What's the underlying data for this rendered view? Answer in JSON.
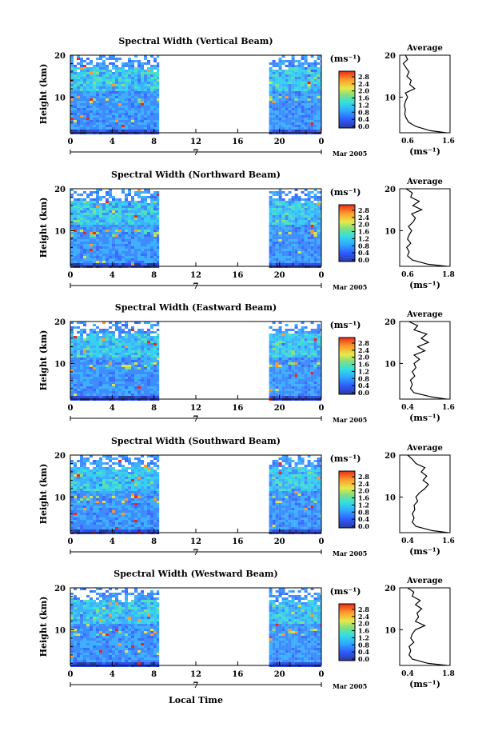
{
  "figure": {
    "xlabel": "Local Time",
    "colorbar_unit": "(ms⁻¹)",
    "avg_title": "Average",
    "avg_xlabel": "(ms⁻¹)",
    "date_suffix": "Mar 2005",
    "day_label": "7"
  },
  "chart_data": [
    {
      "type": "heatmap",
      "title": "Spectral Width (Vertical Beam)",
      "ylabel": "Height (km)",
      "xlabel": "Local Time",
      "x_ticks": [
        "0",
        "4",
        "8",
        "12",
        "16",
        "20",
        "0"
      ],
      "y_ticks": [
        "20",
        "10"
      ],
      "xlim": [
        0,
        24
      ],
      "ylim": [
        1.5,
        20
      ],
      "data_segments_hours": [
        [
          0,
          8.5
        ],
        [
          19,
          24
        ]
      ],
      "colorbar": {
        "ticks": [
          "2.8",
          "2.4",
          "2.0",
          "1.6",
          "1.2",
          "0.8",
          "0.4",
          "0.0"
        ],
        "range": [
          0,
          3.0
        ]
      },
      "average_profile": {
        "xlim": [
          0.2,
          1.6
        ],
        "x_ticks": [
          "0.6",
          "1.6"
        ],
        "height_km": [
          1.5,
          2,
          3,
          4,
          5,
          6,
          7,
          8,
          9,
          10,
          11,
          12,
          13,
          14,
          15,
          16,
          17,
          18,
          19,
          20
        ],
        "width_ms": [
          1.5,
          1.05,
          0.65,
          0.45,
          0.38,
          0.34,
          0.36,
          0.33,
          0.36,
          0.42,
          0.36,
          0.62,
          0.48,
          0.52,
          0.4,
          0.46,
          0.38,
          0.3,
          0.42,
          0.36
        ]
      }
    },
    {
      "type": "heatmap",
      "title": "Spectral Width (Northward Beam)",
      "ylabel": "Height (km)",
      "xlabel": "Local Time",
      "x_ticks": [
        "0",
        "4",
        "8",
        "12",
        "16",
        "20",
        "0"
      ],
      "y_ticks": [
        "20",
        "10"
      ],
      "xlim": [
        0,
        24
      ],
      "ylim": [
        1.5,
        20
      ],
      "data_segments_hours": [
        [
          0,
          8.5
        ],
        [
          19,
          24
        ]
      ],
      "colorbar": {
        "ticks": [
          "2.8",
          "2.4",
          "2.0",
          "1.6",
          "1.2",
          "0.8",
          "0.4",
          "0.0"
        ],
        "range": [
          0,
          3.0
        ]
      },
      "average_profile": {
        "xlim": [
          0.2,
          1.8
        ],
        "x_ticks": [
          "0.6",
          "1.8"
        ],
        "height_km": [
          1.5,
          2,
          3,
          4,
          5,
          6,
          7,
          8,
          9,
          10,
          11,
          12,
          13,
          14,
          15,
          16,
          17,
          18,
          19,
          20
        ],
        "width_ms": [
          1.7,
          1.1,
          0.6,
          0.45,
          0.5,
          0.42,
          0.55,
          0.45,
          0.5,
          0.58,
          0.48,
          0.62,
          0.7,
          0.58,
          0.9,
          0.62,
          0.82,
          0.55,
          0.6,
          0.4
        ]
      }
    },
    {
      "type": "heatmap",
      "title": "Spectral Width (Eastward Beam)",
      "ylabel": "Height (km)",
      "xlabel": "Local Time",
      "x_ticks": [
        "0",
        "4",
        "8",
        "12",
        "16",
        "20",
        "0"
      ],
      "y_ticks": [
        "20",
        "10"
      ],
      "xlim": [
        0,
        24
      ],
      "ylim": [
        1.5,
        20
      ],
      "data_segments_hours": [
        [
          0,
          8.5
        ],
        [
          19,
          24
        ]
      ],
      "colorbar": {
        "ticks": [
          "2.8",
          "2.4",
          "2.0",
          "1.6",
          "1.2",
          "0.8",
          "0.4",
          "0.0"
        ],
        "range": [
          0,
          3.0
        ]
      },
      "average_profile": {
        "xlim": [
          0.2,
          1.6
        ],
        "x_ticks": [
          "0.4",
          "1.6"
        ],
        "height_km": [
          1.5,
          2,
          3,
          4,
          5,
          6,
          7,
          8,
          9,
          10,
          11,
          12,
          13,
          14,
          15,
          16,
          17,
          18,
          19,
          20
        ],
        "width_ms": [
          1.5,
          1.1,
          0.6,
          0.5,
          0.55,
          0.5,
          0.62,
          0.55,
          0.65,
          0.6,
          0.75,
          0.6,
          0.9,
          0.7,
          1.0,
          0.8,
          0.95,
          0.6,
          0.7,
          0.45
        ]
      }
    },
    {
      "type": "heatmap",
      "title": "Spectral Width (Southward Beam)",
      "ylabel": "Height (km)",
      "xlabel": "Local Time",
      "x_ticks": [
        "0",
        "4",
        "8",
        "12",
        "16",
        "20",
        "0"
      ],
      "y_ticks": [
        "20",
        "10"
      ],
      "xlim": [
        0,
        24
      ],
      "ylim": [
        1.5,
        20
      ],
      "data_segments_hours": [
        [
          0,
          8.5
        ],
        [
          19,
          24
        ]
      ],
      "colorbar": {
        "ticks": [
          "2.8",
          "2.4",
          "2.0",
          "1.6",
          "1.2",
          "0.8",
          "0.4",
          "0.0"
        ],
        "range": [
          0,
          3.0
        ]
      },
      "average_profile": {
        "xlim": [
          0.2,
          1.6
        ],
        "x_ticks": [
          "0.4",
          "1.6"
        ],
        "height_km": [
          1.5,
          2,
          3,
          4,
          5,
          6,
          7,
          8,
          9,
          10,
          11,
          12,
          13,
          14,
          15,
          16,
          17,
          18,
          19,
          20
        ],
        "width_ms": [
          1.55,
          1.1,
          0.65,
          0.55,
          0.6,
          0.55,
          0.62,
          0.6,
          0.7,
          0.65,
          0.75,
          0.9,
          1.0,
          0.85,
          0.95,
          0.8,
          0.9,
          0.65,
          0.55,
          0.42
        ]
      }
    },
    {
      "type": "heatmap",
      "title": "Spectral Width (Westward Beam)",
      "ylabel": "Height (km)",
      "xlabel": "Local Time",
      "x_ticks": [
        "0",
        "4",
        "8",
        "12",
        "16",
        "20",
        "0"
      ],
      "y_ticks": [
        "20",
        "10"
      ],
      "xlim": [
        0,
        24
      ],
      "ylim": [
        1.5,
        20
      ],
      "data_segments_hours": [
        [
          0,
          8.5
        ],
        [
          19,
          24
        ]
      ],
      "colorbar": {
        "ticks": [
          "2.8",
          "2.4",
          "2.0",
          "1.6",
          "1.2",
          "0.8",
          "0.4",
          "0.0"
        ],
        "range": [
          0,
          3.0
        ]
      },
      "average_profile": {
        "xlim": [
          0.2,
          1.8
        ],
        "x_ticks": [
          "0.4",
          "1.8"
        ],
        "height_km": [
          1.5,
          2,
          3,
          4,
          5,
          6,
          7,
          8,
          9,
          10,
          11,
          12,
          13,
          14,
          15,
          16,
          17,
          18,
          19,
          20
        ],
        "width_ms": [
          1.7,
          1.1,
          0.6,
          0.5,
          0.55,
          0.5,
          0.65,
          0.55,
          0.6,
          0.7,
          1.0,
          0.7,
          0.8,
          0.75,
          0.9,
          0.7,
          0.85,
          0.6,
          0.65,
          0.45
        ]
      }
    }
  ]
}
